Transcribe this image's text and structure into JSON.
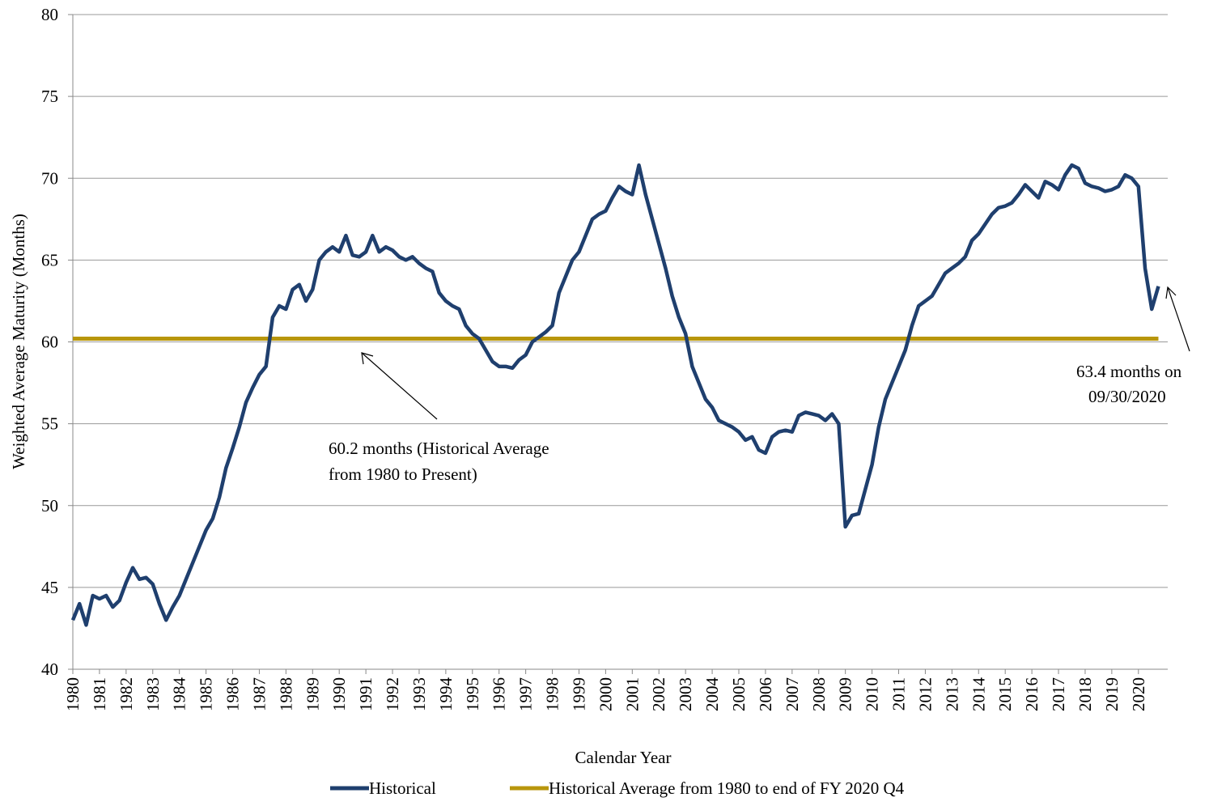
{
  "chart_data": {
    "type": "line",
    "ylabel": "Weighted Average Maturity (Months)",
    "xlabel": "Calendar Year",
    "xlim": [
      1980,
      2021.1
    ],
    "ylim": [
      40,
      80
    ],
    "yticks": [
      40,
      45,
      50,
      55,
      60,
      65,
      70,
      75,
      80
    ],
    "xticks": [
      1980,
      1981,
      1982,
      1983,
      1984,
      1985,
      1986,
      1987,
      1988,
      1989,
      1990,
      1991,
      1992,
      1993,
      1994,
      1995,
      1996,
      1997,
      1998,
      1999,
      2000,
      2001,
      2002,
      2003,
      2004,
      2005,
      2006,
      2007,
      2008,
      2009,
      2010,
      2011,
      2012,
      2013,
      2014,
      2015,
      2016,
      2017,
      2018,
      2019,
      2020
    ],
    "grid": true,
    "legend": "bottom",
    "series": [
      {
        "name": "Historical",
        "color": "#1f3f6e",
        "x": [
          1980,
          1980.25,
          1980.5,
          1980.75,
          1981,
          1981.25,
          1981.5,
          1981.75,
          1982,
          1982.25,
          1982.5,
          1982.75,
          1983,
          1983.25,
          1983.5,
          1983.75,
          1984,
          1984.25,
          1984.5,
          1984.75,
          1985,
          1985.25,
          1985.5,
          1985.75,
          1986,
          1986.25,
          1986.5,
          1986.75,
          1987,
          1987.25,
          1987.5,
          1987.75,
          1988,
          1988.25,
          1988.5,
          1988.75,
          1989,
          1989.25,
          1989.5,
          1989.75,
          1990,
          1990.25,
          1990.5,
          1990.75,
          1991,
          1991.25,
          1991.5,
          1991.75,
          1992,
          1992.25,
          1992.5,
          1992.75,
          1993,
          1993.25,
          1993.5,
          1993.75,
          1994,
          1994.25,
          1994.5,
          1994.75,
          1995,
          1995.25,
          1995.5,
          1995.75,
          1996,
          1996.25,
          1996.5,
          1996.75,
          1997,
          1997.25,
          1997.5,
          1997.75,
          1998,
          1998.25,
          1998.5,
          1998.75,
          1999,
          1999.25,
          1999.5,
          1999.75,
          2000,
          2000.25,
          2000.5,
          2000.75,
          2001,
          2001.25,
          2001.5,
          2001.75,
          2002,
          2002.25,
          2002.5,
          2002.75,
          2003,
          2003.25,
          2003.5,
          2003.75,
          2004,
          2004.25,
          2004.5,
          2004.75,
          2005,
          2005.25,
          2005.5,
          2005.75,
          2006,
          2006.25,
          2006.5,
          2006.75,
          2007,
          2007.25,
          2007.5,
          2007.75,
          2008,
          2008.25,
          2008.5,
          2008.75,
          2009,
          2009.25,
          2009.5,
          2009.75,
          2010,
          2010.25,
          2010.5,
          2010.75,
          2011,
          2011.25,
          2011.5,
          2011.75,
          2012,
          2012.25,
          2012.5,
          2012.75,
          2013,
          2013.25,
          2013.5,
          2013.75,
          2014,
          2014.25,
          2014.5,
          2014.75,
          2015,
          2015.25,
          2015.5,
          2015.75,
          2016,
          2016.25,
          2016.5,
          2016.75,
          2017,
          2017.25,
          2017.5,
          2017.75,
          2018,
          2018.25,
          2018.5,
          2018.75,
          2019,
          2019.25,
          2019.5,
          2019.75,
          2020,
          2020.25,
          2020.5,
          2020.75
        ],
        "values": [
          43,
          44,
          42.7,
          44.5,
          44.3,
          44.5,
          43.8,
          44.2,
          45.3,
          46.2,
          45.5,
          45.6,
          45.2,
          44,
          43,
          43.8,
          44.5,
          45.5,
          46.5,
          47.5,
          48.5,
          49.2,
          50.5,
          52.3,
          53.5,
          54.8,
          56.3,
          57.2,
          58,
          58.5,
          61.5,
          62.2,
          62,
          63.2,
          63.5,
          62.5,
          63.2,
          65,
          65.5,
          65.8,
          65.5,
          66.5,
          65.3,
          65.2,
          65.5,
          66.5,
          65.5,
          65.8,
          65.6,
          65.2,
          65,
          65.2,
          64.8,
          64.5,
          64.3,
          63,
          62.5,
          62.2,
          62,
          61,
          60.5,
          60.2,
          59.5,
          58.8,
          58.5,
          58.5,
          58.4,
          58.9,
          59.2,
          60,
          60.3,
          60.6,
          61,
          63,
          64,
          65,
          65.5,
          66.5,
          67.5,
          67.8,
          68,
          68.8,
          69.5,
          69.2,
          69,
          70.8,
          69,
          67.5,
          66,
          64.5,
          62.8,
          61.5,
          60.5,
          58.5,
          57.5,
          56.5,
          56,
          55.2,
          55,
          54.8,
          54.5,
          54,
          54.2,
          53.4,
          53.2,
          54.2,
          54.5,
          54.6,
          54.5,
          55.5,
          55.7,
          55.6,
          55.5,
          55.2,
          55.6,
          55,
          48.7,
          49.4,
          49.5,
          51,
          52.5,
          54.8,
          56.5,
          57.5,
          58.5,
          59.5,
          61,
          62.2,
          62.5,
          62.8,
          63.5,
          64.2,
          64.5,
          64.8,
          65.2,
          66.2,
          66.6,
          67.2,
          67.8,
          68.2,
          68.3,
          68.5,
          69,
          69.6,
          69.2,
          68.8,
          69.8,
          69.6,
          69.3,
          70.2,
          70.8,
          70.6,
          69.7,
          69.5,
          69.4,
          69.2,
          69.3,
          69.5,
          70.2,
          70,
          69.5,
          64.5,
          62,
          63.4
        ]
      },
      {
        "name": "Historical Average from 1980 to end of FY 2020 Q4",
        "color": "#b8960c",
        "x": [
          1980,
          2020.75
        ],
        "values": [
          60.2,
          60.2
        ]
      }
    ],
    "annotations": [
      {
        "lines": [
          "60.2 months (Historical Average",
          "from 1980 to Present)"
        ]
      },
      {
        "lines": [
          "63.4 months on",
          "09/30/2020"
        ]
      }
    ]
  }
}
